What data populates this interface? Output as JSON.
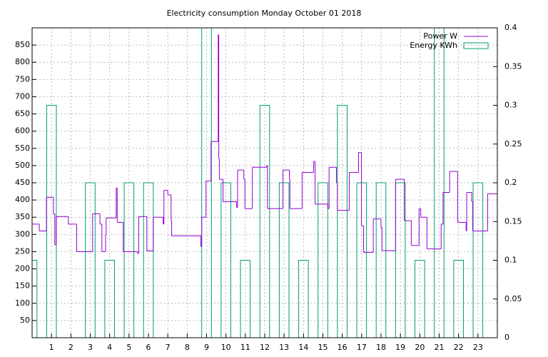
{
  "chart_data": [
    {
      "type": "step",
      "title": "Electricity consumption Monday October 01 2018",
      "series": [
        {
          "name": "Power W",
          "color": "#9400d3",
          "x": [
            0,
            0.37,
            0.74,
            1.1,
            1.17,
            1.24,
            1.87,
            2.3,
            3.12,
            3.5,
            3.6,
            3.79,
            3.82,
            4.34,
            4.39,
            4.7,
            5.44,
            5.5,
            5.92,
            6.25,
            6.76,
            6.8,
            7.0,
            7.17,
            7.2,
            8.7,
            8.75,
            8.97,
            9.23,
            9.6,
            9.63,
            9.66,
            9.85,
            10.55,
            10.6,
            10.92,
            10.98,
            11.36,
            12.1,
            12.14,
            12.94,
            13.27,
            13.3,
            13.93,
            14.52,
            14.6,
            15.26,
            15.32,
            15.7,
            15.75,
            16.36,
            16.84,
            16.99,
            17.1,
            17.6,
            18.0,
            18.05,
            18.75,
            19.2,
            19.56,
            19.96,
            20.05,
            20.37,
            21.1,
            21.2,
            21.54,
            21.95,
            22.39,
            22.42,
            22.68,
            22.73,
            23.5
          ],
          "values": [
            330,
            310,
            408,
            360,
            270,
            352,
            330,
            250,
            360,
            330,
            250,
            300,
            348,
            435,
            335,
            250,
            245,
            352,
            252,
            350,
            330,
            428,
            415,
            340,
            296,
            265,
            350,
            455,
            570,
            880,
            520,
            460,
            395,
            378,
            487,
            460,
            375,
            495,
            500,
            375,
            487,
            460,
            375,
            480,
            512,
            388,
            375,
            495,
            450,
            370,
            480,
            538,
            325,
            248,
            345,
            320,
            253,
            460,
            340,
            268,
            375,
            350,
            258,
            330,
            422,
            483,
            335,
            310,
            422,
            395,
            310,
            418
          ]
        }
      ],
      "xlim": [
        0,
        24
      ],
      "xticks": [
        1,
        2,
        3,
        4,
        5,
        6,
        7,
        8,
        9,
        10,
        11,
        12,
        13,
        14,
        15,
        16,
        17,
        18,
        19,
        20,
        21,
        22,
        23
      ],
      "ylim": [
        0,
        900
      ],
      "yticks": [
        50,
        100,
        150,
        200,
        250,
        300,
        350,
        400,
        450,
        500,
        550,
        600,
        650,
        700,
        750,
        800,
        850
      ],
      "grid": true
    },
    {
      "type": "box",
      "series": [
        {
          "name": "Energy KWh",
          "color": "#009e73",
          "axis": "y2",
          "x": [
            0,
            1,
            2,
            3,
            4,
            5,
            6,
            7,
            8,
            9,
            10,
            11,
            12,
            13,
            14,
            15,
            16,
            17,
            18,
            19,
            20,
            21,
            22,
            23
          ],
          "values": [
            0.1,
            0.3,
            0,
            0.2,
            0.1,
            0.2,
            0.2,
            0,
            0,
            0.4,
            0.2,
            0.1,
            0.3,
            0.2,
            0.1,
            0.2,
            0.3,
            0.2,
            0.2,
            0.2,
            0.1,
            0.4,
            0.1,
            0.2
          ]
        }
      ],
      "box_width": 0.5,
      "y2lim": [
        0,
        0.4
      ],
      "y2ticks": [
        0,
        0.05,
        0.1,
        0.15,
        0.2,
        0.25,
        0.3,
        0.35,
        0.4
      ]
    }
  ]
}
